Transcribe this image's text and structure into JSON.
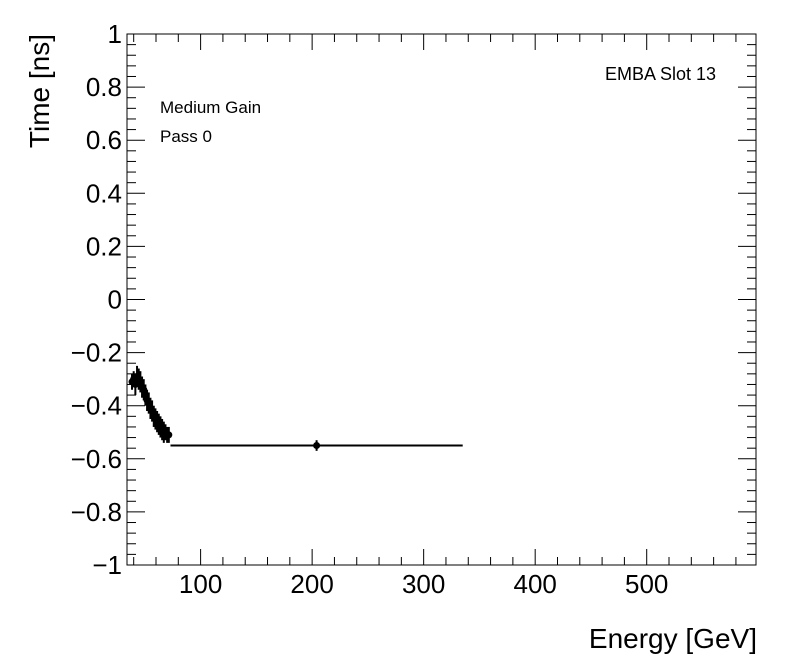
{
  "chart_data": {
    "type": "scatter",
    "title": "",
    "xlabel": "Energy [GeV]",
    "ylabel": "Time [ns]",
    "xlim": [
      34,
      598
    ],
    "ylim": [
      -1,
      1
    ],
    "x_ticks": [
      100,
      200,
      300,
      400,
      500
    ],
    "x_tick_labels": [
      "100",
      "200",
      "300",
      "400",
      "500"
    ],
    "y_ticks": [
      -1,
      -0.8,
      -0.6,
      -0.4,
      -0.2,
      0,
      0.2,
      0.4,
      0.6,
      0.8,
      1
    ],
    "y_tick_labels": [
      "−1",
      "−0.8",
      "−0.6",
      "−0.4",
      "−0.2",
      "0",
      "0.2",
      "0.4",
      "0.6",
      "0.8",
      "1"
    ],
    "grid": false,
    "annotations": {
      "top_right": "EMBA Slot 13",
      "gain": "Medium Gain",
      "pass": "Pass 0"
    },
    "series": [
      {
        "points": [
          {
            "x": 38.5,
            "y": -0.31,
            "xerr": 0.8,
            "yerr": 0.03
          },
          {
            "x": 40.0,
            "y": -0.3,
            "xerr": 0.8,
            "yerr": 0.03
          },
          {
            "x": 41.5,
            "y": -0.32,
            "xerr": 0.8,
            "yerr": 0.04
          },
          {
            "x": 43.0,
            "y": -0.29,
            "xerr": 0.8,
            "yerr": 0.04
          },
          {
            "x": 44.5,
            "y": -0.3,
            "xerr": 0.8,
            "yerr": 0.04
          },
          {
            "x": 46.0,
            "y": -0.31,
            "xerr": 0.8,
            "yerr": 0.04
          },
          {
            "x": 47.5,
            "y": -0.33,
            "xerr": 0.8,
            "yerr": 0.04
          },
          {
            "x": 49.0,
            "y": -0.34,
            "xerr": 0.8,
            "yerr": 0.04
          },
          {
            "x": 50.5,
            "y": -0.36,
            "xerr": 0.8,
            "yerr": 0.04
          },
          {
            "x": 52.0,
            "y": -0.38,
            "xerr": 0.8,
            "yerr": 0.04
          },
          {
            "x": 53.5,
            "y": -0.39,
            "xerr": 0.8,
            "yerr": 0.04
          },
          {
            "x": 55.0,
            "y": -0.41,
            "xerr": 0.8,
            "yerr": 0.04
          },
          {
            "x": 56.5,
            "y": -0.42,
            "xerr": 0.8,
            "yerr": 0.04
          },
          {
            "x": 58.0,
            "y": -0.44,
            "xerr": 0.8,
            "yerr": 0.04
          },
          {
            "x": 59.5,
            "y": -0.45,
            "xerr": 0.8,
            "yerr": 0.04
          },
          {
            "x": 61.0,
            "y": -0.46,
            "xerr": 0.8,
            "yerr": 0.04
          },
          {
            "x": 62.5,
            "y": -0.47,
            "xerr": 0.8,
            "yerr": 0.04
          },
          {
            "x": 64.0,
            "y": -0.48,
            "xerr": 0.8,
            "yerr": 0.04
          },
          {
            "x": 65.5,
            "y": -0.49,
            "xerr": 0.8,
            "yerr": 0.04
          },
          {
            "x": 67.0,
            "y": -0.5,
            "xerr": 0.8,
            "yerr": 0.04
          },
          {
            "x": 68.5,
            "y": -0.5,
            "xerr": 0.8,
            "yerr": 0.03
          },
          {
            "x": 70.0,
            "y": -0.51,
            "xerr": 0.8,
            "yerr": 0.03
          },
          {
            "x": 71.5,
            "y": -0.51,
            "xerr": 0.8,
            "yerr": 0.03
          },
          {
            "x": 204.0,
            "y": -0.55,
            "xerr": 131,
            "yerr": 0.02
          }
        ]
      }
    ]
  }
}
